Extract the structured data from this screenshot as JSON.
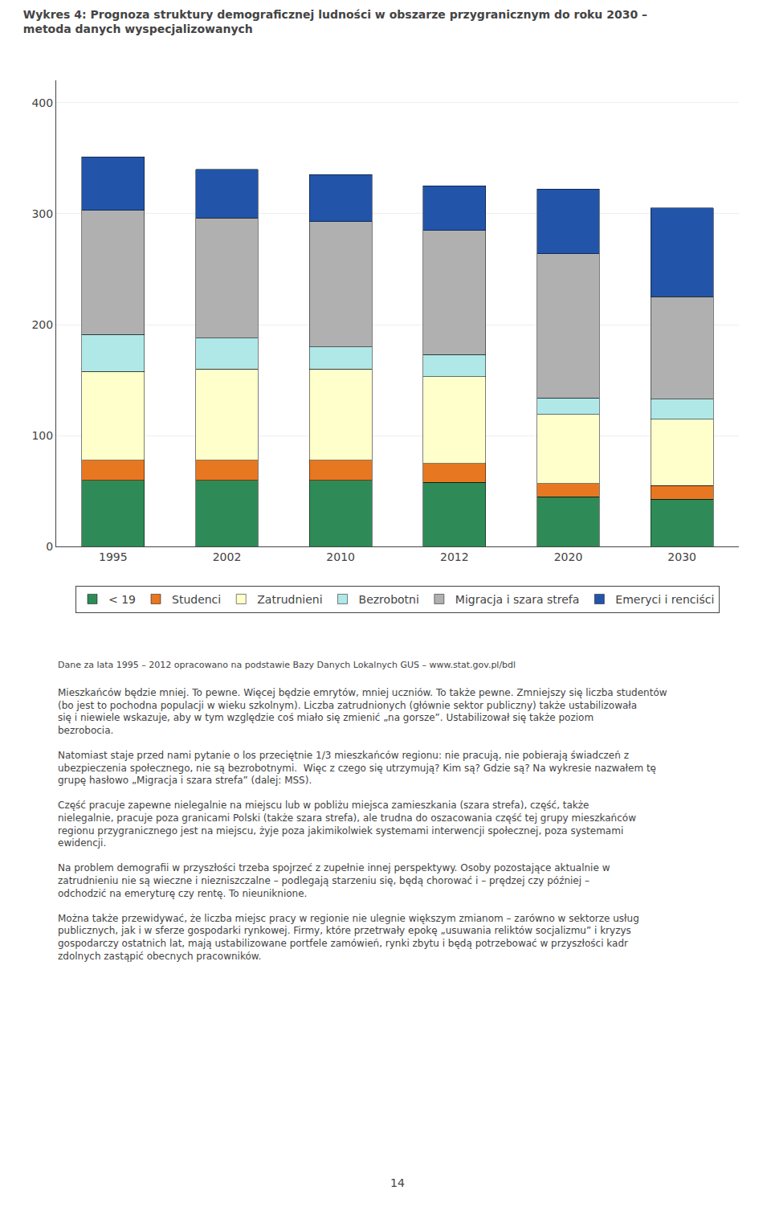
{
  "chart_data": {
    "type": "bar",
    "stacked": true,
    "title": "Wykres 4: Prognoza struktury demograficznej ludności w obszarze przygranicznym do roku 2030 – metoda danych wyspecjalizowanych",
    "categories": [
      "1995",
      "2002",
      "2010",
      "2012",
      "2020",
      "2030"
    ],
    "series": [
      {
        "name": "< 19",
        "color": "#2e8b57",
        "values": [
          60,
          60,
          60,
          58,
          45,
          43
        ]
      },
      {
        "name": "Studenci",
        "color": "#e87722",
        "values": [
          18,
          18,
          18,
          17,
          12,
          12
        ]
      },
      {
        "name": "Zatrudnieni",
        "color": "#ffffcc",
        "values": [
          80,
          82,
          82,
          78,
          62,
          60
        ]
      },
      {
        "name": "Bezrobotni",
        "color": "#b0e8e8",
        "values": [
          33,
          28,
          20,
          20,
          15,
          18
        ]
      },
      {
        "name": "Migracja i szara strefa",
        "color": "#b0b0b0",
        "values": [
          112,
          108,
          113,
          112,
          130,
          92
        ]
      },
      {
        "name": "Emeryci i renciści",
        "color": "#2255aa",
        "values": [
          48,
          44,
          42,
          40,
          58,
          80
        ]
      }
    ],
    "ylim": [
      0,
      420
    ],
    "yticks": [
      0,
      100,
      200,
      300,
      400
    ],
    "grid": true,
    "legend": "bottom",
    "annotations": [
      "Dane za lata 1995 – 2012 opracowano na podstawie Bazy Danych Lokalnych GUS – www.stat.gov.pl/bdl",
      "Mieszkańców będzie mniej. To pewne. Więcej będzie emrytów, mniej uczniów. To także pewne. Zmniejszy się liczba studentów (bo jest to pochodna populacji w wieku szkolnym). Liczba zatrudnionych (głównie sektor publiczny) także ustabilizowała się i niewiele wskazuje, aby w tym względzie coś miało się zmienić „na gorsze”. Ustabilizował się także poziom bezrobocia.",
      "Natomiast staje przed nami pytanie o los przeciętnie 1/3 mieszkańców regionu: nie pracują, nie pobierają świadczeń z ubezpieczenia społecznego, nie są bezrobotnymi.  Więc z czego się utrzymują? Kim są? Gdzie są? Na wykresie nazwałem tę grupę hasłowo „Migracja i szara strefa” (dalej: MSS).",
      "Część pracuje zapewne nielegalnie na miejscu lub w pobliżu miejsca zamieszkania (szara strefa), część, także nielegalnie, pracuje poza granicami Polski (także szara strefa), ale trudna do oszacowania część tej grupy mieszkańców regionu przygranicznego jest na miejscu, żyje poza jakimikolwiek systemami interwencji społecznej, poza systemami ewidencji.",
      "Na problem demografii w przyszłości trzeba spojrzeć z zupełnie innej perspektywy. Osoby pozostające aktualnie w zatrudnieniu nie są wieczne i niezniszczalne – podlegają starzeniu się, będą chorować i – prędzej czy później – odchodzić na emeryturę czy rentę. To nieuniknione.",
      "Można także przewidywać, że liczba miejsc pracy w regionie nie ulegnie większym zmianom – zarówno w sektorze usług publicznych, jak i w sferze gospodarki rynkowej. Firmy, które przetrwały epokę „usuwania reliktów socjalizmu” i kryzys gospodarczy ostatnich lat, mają ustabilizowane portfele zamówień, rynki zbytu i będą potrzebować w przyszłości kadr zdolnych zastąpić obecnych pracowników.",
      "14"
    ]
  }
}
